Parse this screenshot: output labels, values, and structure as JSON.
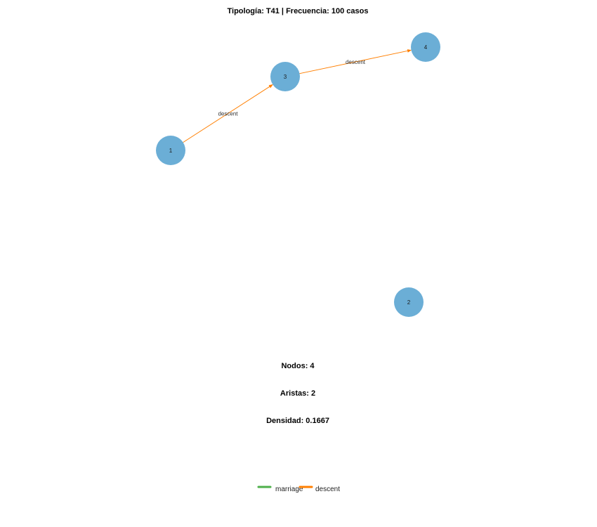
{
  "title": "Tipología: T41 | Frecuencia: 100 casos",
  "colors": {
    "node_fill": "#6baed6",
    "marriage": "#4daf4a",
    "descent": "#ff7f00"
  },
  "nodes": [
    {
      "id": "1",
      "label": "1"
    },
    {
      "id": "2",
      "label": "2"
    },
    {
      "id": "3",
      "label": "3"
    },
    {
      "id": "4",
      "label": "4"
    }
  ],
  "edges": [
    {
      "from": "1",
      "to": "3",
      "type": "descent",
      "label": "descent"
    },
    {
      "from": "3",
      "to": "4",
      "type": "descent",
      "label": "descent"
    }
  ],
  "stats": {
    "nodes": "Nodos: 4",
    "edges": "Aristas: 2",
    "density": "Densidad: 0.1667"
  },
  "legend": [
    {
      "label": "marriage",
      "color_key": "marriage"
    },
    {
      "label": "descent",
      "color_key": "descent"
    }
  ]
}
